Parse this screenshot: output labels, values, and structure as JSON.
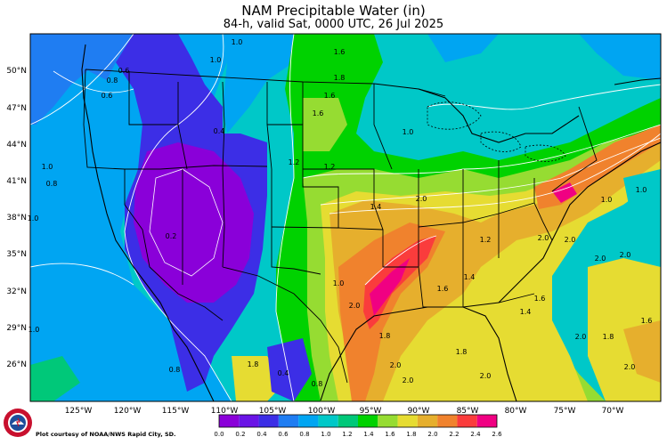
{
  "header": {
    "title": "NAM Precipitable Water (in)",
    "subtitle": "84-h, valid Sat, 0000 UTC, 26 Jul 2025"
  },
  "map": {
    "lat_labels": [
      "50°N",
      "47°N",
      "44°N",
      "41°N",
      "38°N",
      "35°N",
      "32°N",
      "29°N",
      "26°N"
    ],
    "lon_labels": [
      "125°W",
      "120°W",
      "115°W",
      "110°W",
      "105°W",
      "100°W",
      "95°W",
      "90°W",
      "85°W",
      "80°W",
      "75°W",
      "70°W"
    ],
    "contour_labels": [
      {
        "t": "1.0"
      },
      {
        "t": "1.6"
      },
      {
        "t": "0.6"
      },
      {
        "t": "0.8"
      },
      {
        "t": "1.0"
      },
      {
        "t": "1.8"
      },
      {
        "t": "1.6"
      },
      {
        "t": "0.6"
      },
      {
        "t": "1.6"
      },
      {
        "t": "1.0"
      },
      {
        "t": "0.4"
      },
      {
        "t": "1.2"
      },
      {
        "t": "1.0"
      },
      {
        "t": "0.8"
      },
      {
        "t": "0.2"
      },
      {
        "t": "1.2"
      },
      {
        "t": "2.0"
      },
      {
        "t": "1.4"
      },
      {
        "t": "1.0"
      },
      {
        "t": "1.2"
      },
      {
        "t": "1.0"
      },
      {
        "t": "2.0"
      },
      {
        "t": "1.6"
      },
      {
        "t": "1.4"
      },
      {
        "t": "2.0"
      },
      {
        "t": "1.0"
      },
      {
        "t": "1.0"
      },
      {
        "t": "2.0"
      },
      {
        "t": "2.0"
      },
      {
        "t": "2.0"
      },
      {
        "t": "1.6"
      },
      {
        "t": "1.4"
      },
      {
        "t": "1.8"
      },
      {
        "t": "2.0"
      },
      {
        "t": "2.0"
      },
      {
        "t": "1.0"
      },
      {
        "t": "1.8"
      },
      {
        "t": "0.4"
      },
      {
        "t": "0.8"
      },
      {
        "t": "0.8"
      },
      {
        "t": "2.0"
      },
      {
        "t": "1.8"
      },
      {
        "t": "2.0"
      },
      {
        "t": "1.6"
      },
      {
        "t": "1.8"
      },
      {
        "t": "2.0"
      }
    ]
  },
  "colorbar": {
    "ticks": [
      "0.0",
      "0.2",
      "0.4",
      "0.6",
      "0.8",
      "1.0",
      "1.2",
      "1.4",
      "1.6",
      "1.8",
      "2.0",
      "2.2",
      "2.4",
      "2.6"
    ],
    "colors": [
      "#8a00d9",
      "#6a14e6",
      "#3c2ee6",
      "#1f7df2",
      "#00a5f2",
      "#00c8c8",
      "#00c879",
      "#00d200",
      "#96dc32",
      "#e6dc32",
      "#e6af2d",
      "#f0822d",
      "#fa3c3c",
      "#f00082"
    ]
  },
  "credit": "Plot courtesy of NOAA/NWS Rapid City, SD.",
  "logo_text": "NATIONAL WEATHER SERVICE"
}
